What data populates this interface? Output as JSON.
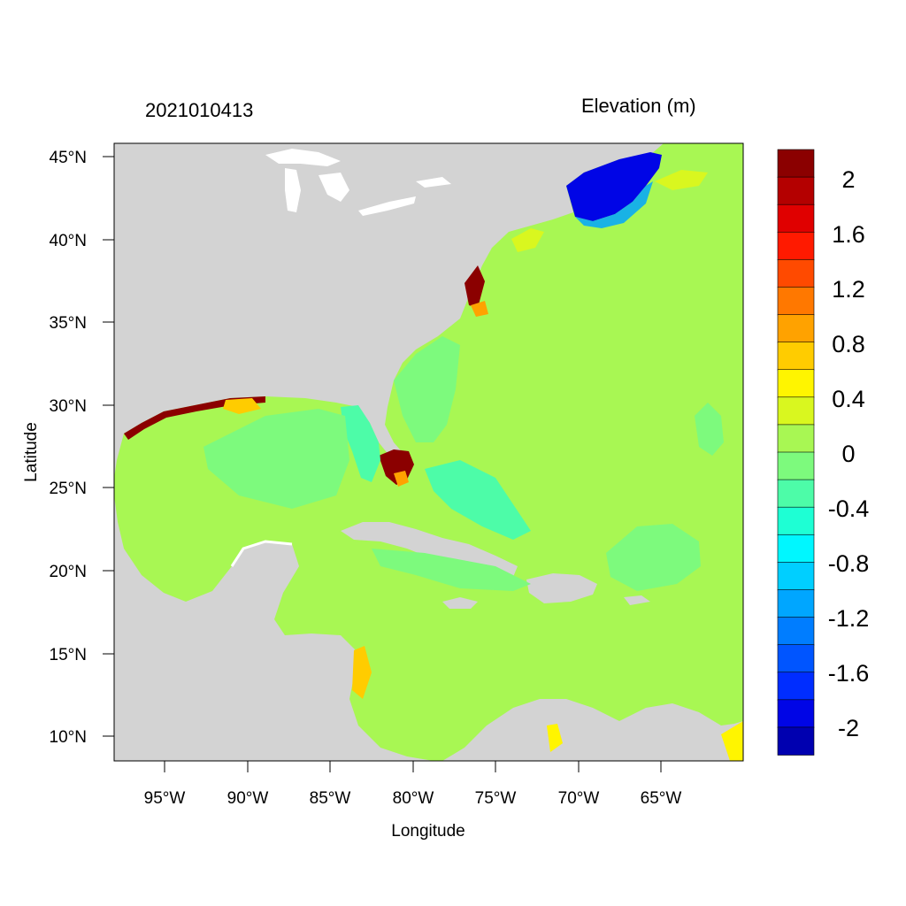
{
  "timestamp": "2021010413",
  "variable_title": "Elevation (m)",
  "axes": {
    "xlabel": "Longitude",
    "ylabel": "Latitude",
    "lon_ticks": [
      "95°W",
      "90°W",
      "85°W",
      "80°W",
      "75°W",
      "70°W",
      "65°W"
    ],
    "lat_ticks": [
      "45°N",
      "40°N",
      "35°N",
      "30°N",
      "25°N",
      "20°N",
      "15°N",
      "10°N"
    ]
  },
  "colorbar": {
    "labels": [
      "2",
      "1.6",
      "1.2",
      "0.8",
      "0.4",
      "0",
      "-0.4",
      "-0.8",
      "-1.2",
      "-1.6",
      "-2"
    ],
    "colors": [
      "#8b0000",
      "#b40000",
      "#e00000",
      "#ff1a00",
      "#ff4a00",
      "#ff7800",
      "#ffa200",
      "#ffcc00",
      "#fff500",
      "#d9f71f",
      "#a8f753",
      "#7dfa7d",
      "#4dfca8",
      "#1effd4",
      "#00f7ff",
      "#00cfff",
      "#00a6ff",
      "#007dff",
      "#0055ff",
      "#002dff",
      "#0005e6",
      "#0000b0"
    ]
  },
  "colors": {
    "land": "#d3d3d3",
    "ocean_zero": "#a8f753",
    "water_white": "#ffffff"
  }
}
